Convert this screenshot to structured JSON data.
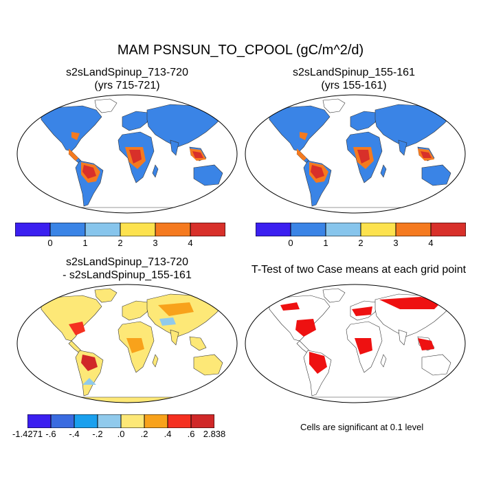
{
  "figure": {
    "title": "MAM PSNSUN_TO_CPOOL (gC/m^2/d)"
  },
  "panels": {
    "top_left": {
      "title_line1": "s2sLandSpinup_713-720",
      "title_line2": "(yrs 715-721)"
    },
    "top_right": {
      "title_line1": "s2sLandSpinup_155-161",
      "title_line2": "(yrs 155-161)"
    },
    "bottom_left": {
      "title_line1": "s2sLandSpinup_713-720",
      "title_line2": "- s2sLandSpinup_155-161"
    },
    "bottom_right": {
      "title_line1": "T-Test of two Case means at each grid point",
      "note": "Cells are significant at 0.1 level"
    }
  },
  "colorbars": {
    "mean": {
      "colors": [
        "#3b1ff0",
        "#3a84e6",
        "#87c5ec",
        "#fde24e",
        "#f57a1f",
        "#d8302a"
      ],
      "labels": [
        "0",
        "1",
        "2",
        "3",
        "4"
      ]
    },
    "diff": {
      "colors": [
        "#3b1ff0",
        "#3a6be0",
        "#1aa0ee",
        "#90caec",
        "#fde877",
        "#f8a21b",
        "#f53020",
        "#d02828"
      ],
      "labels": [
        "-1.4271",
        "-.6",
        "-.4",
        "-.2",
        ".0",
        ".2",
        ".4",
        ".6",
        "2.838"
      ]
    }
  },
  "colors": {
    "ocean": "#ffffff",
    "land_mean_base": "#3a84e6",
    "tropics_high": "#d8302a",
    "tropics_mid": "#f57a1f",
    "diff_base": "#fde877",
    "significant": "#ee1111"
  }
}
